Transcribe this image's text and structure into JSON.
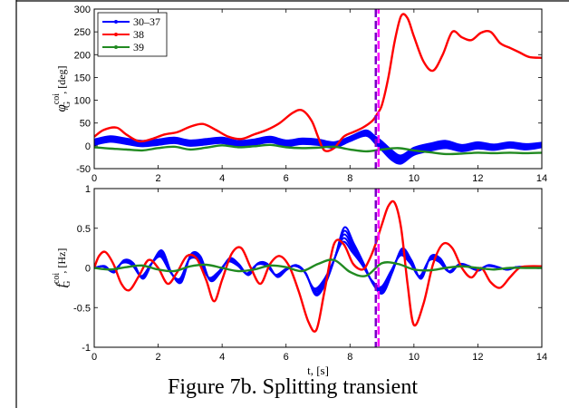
{
  "caption": "Figure 7b. Splitting transient",
  "colors": {
    "blue": "#0000ff",
    "red": "#ff0000",
    "green": "#218a21",
    "marker": "#ff00ff",
    "marker_alt": "#7a00c8"
  },
  "chart_data": [
    {
      "type": "line",
      "ylabel": "φ_G^coi, [deg]",
      "ylabel_main": "φ",
      "ylabel_sub": "G",
      "ylabel_sup": "coi",
      "ylabel_unit": ", [deg]",
      "xlim": [
        0,
        14
      ],
      "ylim": [
        -50,
        300
      ],
      "xticks": [
        "0",
        "2",
        "4",
        "6",
        "8",
        "10",
        "12",
        "14"
      ],
      "yticks": [
        "300",
        "250",
        "200",
        "150",
        "100",
        "50",
        "0",
        "-50"
      ],
      "ytick_values": [
        300,
        250,
        200,
        150,
        100,
        50,
        0,
        -50
      ],
      "legend": [
        "30–37",
        "38",
        "39"
      ],
      "legend_position": "top-left",
      "vline_x": 8.85,
      "series": [
        {
          "name": "30–37",
          "color": "#0000ff",
          "band": true,
          "x": [
            0,
            0.5,
            1,
            1.5,
            2,
            2.5,
            3,
            3.5,
            4,
            4.5,
            5,
            5.5,
            6,
            6.5,
            7,
            7.5,
            8,
            8.5,
            8.8,
            9,
            9.3,
            9.6,
            10,
            10.5,
            11,
            11.5,
            12,
            12.5,
            13,
            13.5,
            14
          ],
          "y": [
            8,
            15,
            10,
            5,
            8,
            12,
            6,
            9,
            12,
            5,
            8,
            14,
            6,
            10,
            8,
            2,
            15,
            28,
            12,
            0,
            -20,
            -30,
            -12,
            -3,
            3,
            -5,
            1,
            -3,
            2,
            -2,
            2
          ],
          "width": [
            14,
            14,
            14,
            14,
            14,
            14,
            14,
            14,
            14,
            14,
            14,
            14,
            14,
            14,
            14,
            14,
            12,
            14,
            18,
            22,
            24,
            20,
            18,
            18,
            18,
            16,
            16,
            14,
            14,
            14,
            12
          ]
        },
        {
          "name": "38",
          "color": "#ff0000",
          "x": [
            0,
            0.3,
            0.7,
            1,
            1.4,
            1.8,
            2.2,
            2.6,
            3,
            3.4,
            3.8,
            4.2,
            4.6,
            5,
            5.4,
            5.8,
            6.2,
            6.5,
            6.8,
            7,
            7.2,
            7.5,
            7.8,
            8.1,
            8.4,
            8.7,
            8.85,
            9,
            9.2,
            9.4,
            9.6,
            9.8,
            10,
            10.3,
            10.6,
            10.9,
            11.2,
            11.5,
            11.8,
            12.1,
            12.4,
            12.7,
            13,
            13.3,
            13.6,
            14
          ],
          "y": [
            20,
            35,
            40,
            25,
            10,
            15,
            25,
            30,
            42,
            48,
            35,
            20,
            15,
            25,
            35,
            50,
            72,
            78,
            55,
            20,
            -10,
            -5,
            20,
            30,
            40,
            55,
            70,
            90,
            150,
            230,
            285,
            280,
            240,
            185,
            165,
            200,
            250,
            238,
            232,
            248,
            250,
            225,
            215,
            205,
            195,
            193
          ]
        },
        {
          "name": "39",
          "color": "#218a21",
          "x": [
            0,
            0.5,
            1,
            1.5,
            2,
            2.5,
            3,
            3.5,
            4,
            4.5,
            5,
            5.5,
            6,
            6.5,
            7,
            7.5,
            8,
            8.5,
            9,
            9.5,
            10,
            10.5,
            11,
            11.5,
            12,
            12.5,
            13,
            13.5,
            14
          ],
          "y": [
            -3,
            -6,
            -8,
            -10,
            -5,
            -2,
            -8,
            -4,
            1,
            -3,
            -1,
            2,
            -3,
            -5,
            -4,
            -2,
            -8,
            -12,
            -8,
            -5,
            -10,
            -14,
            -18,
            -17,
            -15,
            -16,
            -15,
            -16,
            -15
          ]
        }
      ]
    },
    {
      "type": "line",
      "xlabel": "t, [s]",
      "ylabel": "f_G^coi, [Hz]",
      "ylabel_main": "f",
      "ylabel_sub": "G",
      "ylabel_sup": "coi",
      "ylabel_unit": ", [Hz]",
      "xlim": [
        0,
        14
      ],
      "ylim": [
        -1,
        1
      ],
      "xticks": [
        "0",
        "2",
        "4",
        "6",
        "8",
        "10",
        "12",
        "14"
      ],
      "yticks": [
        "1",
        "0.5",
        "0",
        "-0.5",
        "-1"
      ],
      "ytick_values": [
        1,
        0.5,
        0,
        -0.5,
        -1
      ],
      "vline_x": 8.85,
      "series": [
        {
          "name": "30–37",
          "color": "#0000ff",
          "bundle": true,
          "x": [
            0,
            0.3,
            0.6,
            0.9,
            1.2,
            1.5,
            1.8,
            2.1,
            2.4,
            2.7,
            3,
            3.3,
            3.6,
            3.9,
            4.2,
            4.5,
            4.8,
            5.1,
            5.4,
            5.7,
            6,
            6.3,
            6.6,
            6.9,
            7.2,
            7.5,
            7.8,
            8.1,
            8.4,
            8.7,
            9,
            9.3,
            9.6,
            9.9,
            10.2,
            10.5,
            10.8,
            11.1,
            11.4,
            11.7,
            12,
            12.3,
            12.6,
            12.9,
            13.2,
            13.5,
            13.8,
            14
          ],
          "y": [
            0,
            0.02,
            -0.05,
            0.08,
            0.05,
            -0.12,
            0.06,
            0.18,
            -0.06,
            -0.16,
            0.14,
            0.12,
            -0.14,
            -0.06,
            0.1,
            0.04,
            -0.08,
            0.05,
            0.04,
            -0.1,
            -0.02,
            0.03,
            -0.06,
            -0.3,
            -0.18,
            0.1,
            0.42,
            0.25,
            0.05,
            -0.18,
            -0.28,
            -0.05,
            0.2,
            0.08,
            -0.12,
            0.12,
            0.1,
            -0.05,
            0.04,
            0.02,
            -0.03,
            0.03,
            0.01,
            -0.02,
            0.01,
            0.01,
            0,
            0
          ]
        },
        {
          "name": "38",
          "color": "#ff0000",
          "x": [
            0,
            0.15,
            0.35,
            0.6,
            0.85,
            1.1,
            1.4,
            1.7,
            2.0,
            2.3,
            2.6,
            2.9,
            3.2,
            3.5,
            3.75,
            4.0,
            4.3,
            4.6,
            4.9,
            5.2,
            5.5,
            5.8,
            6.1,
            6.4,
            6.7,
            6.95,
            7.2,
            7.5,
            7.8,
            8.1,
            8.4,
            8.6,
            8.8,
            9.0,
            9.2,
            9.4,
            9.6,
            9.8,
            10.0,
            10.3,
            10.6,
            10.9,
            11.2,
            11.5,
            11.8,
            12.1,
            12.4,
            12.7,
            13.0,
            13.3,
            13.6,
            14
          ],
          "y": [
            0,
            0.15,
            0.2,
            0.05,
            -0.2,
            -0.28,
            -0.1,
            0.1,
            0.0,
            -0.2,
            -0.05,
            0.15,
            0.12,
            -0.15,
            -0.42,
            -0.15,
            0.18,
            0.25,
            0.0,
            -0.2,
            0.05,
            0.15,
            0.02,
            -0.3,
            -0.68,
            -0.78,
            -0.3,
            0.3,
            0.3,
            0.05,
            -0.02,
            0.1,
            0.3,
            0.55,
            0.78,
            0.82,
            0.5,
            -0.2,
            -0.72,
            -0.45,
            0.05,
            0.3,
            0.25,
            0.0,
            -0.12,
            0.0,
            -0.18,
            -0.25,
            -0.12,
            0.0,
            0.02,
            0.02
          ]
        },
        {
          "name": "39",
          "color": "#218a21",
          "x": [
            0,
            0.5,
            1,
            1.5,
            2,
            2.5,
            3,
            3.5,
            4,
            4.5,
            5,
            5.5,
            6,
            6.5,
            7,
            7.5,
            8,
            8.5,
            9,
            9.5,
            10,
            10.5,
            11,
            11.5,
            12,
            12.5,
            13,
            13.5,
            14
          ],
          "y": [
            0,
            -0.02,
            0.01,
            0.03,
            -0.02,
            -0.04,
            0.02,
            0.04,
            0.0,
            -0.04,
            -0.02,
            0.03,
            0.01,
            -0.04,
            0.05,
            0.1,
            -0.05,
            -0.1,
            0.06,
            0.05,
            -0.02,
            -0.03,
            0.0,
            0.02,
            0.0,
            -0.02,
            0.0,
            0.0,
            0.0
          ]
        }
      ]
    }
  ]
}
